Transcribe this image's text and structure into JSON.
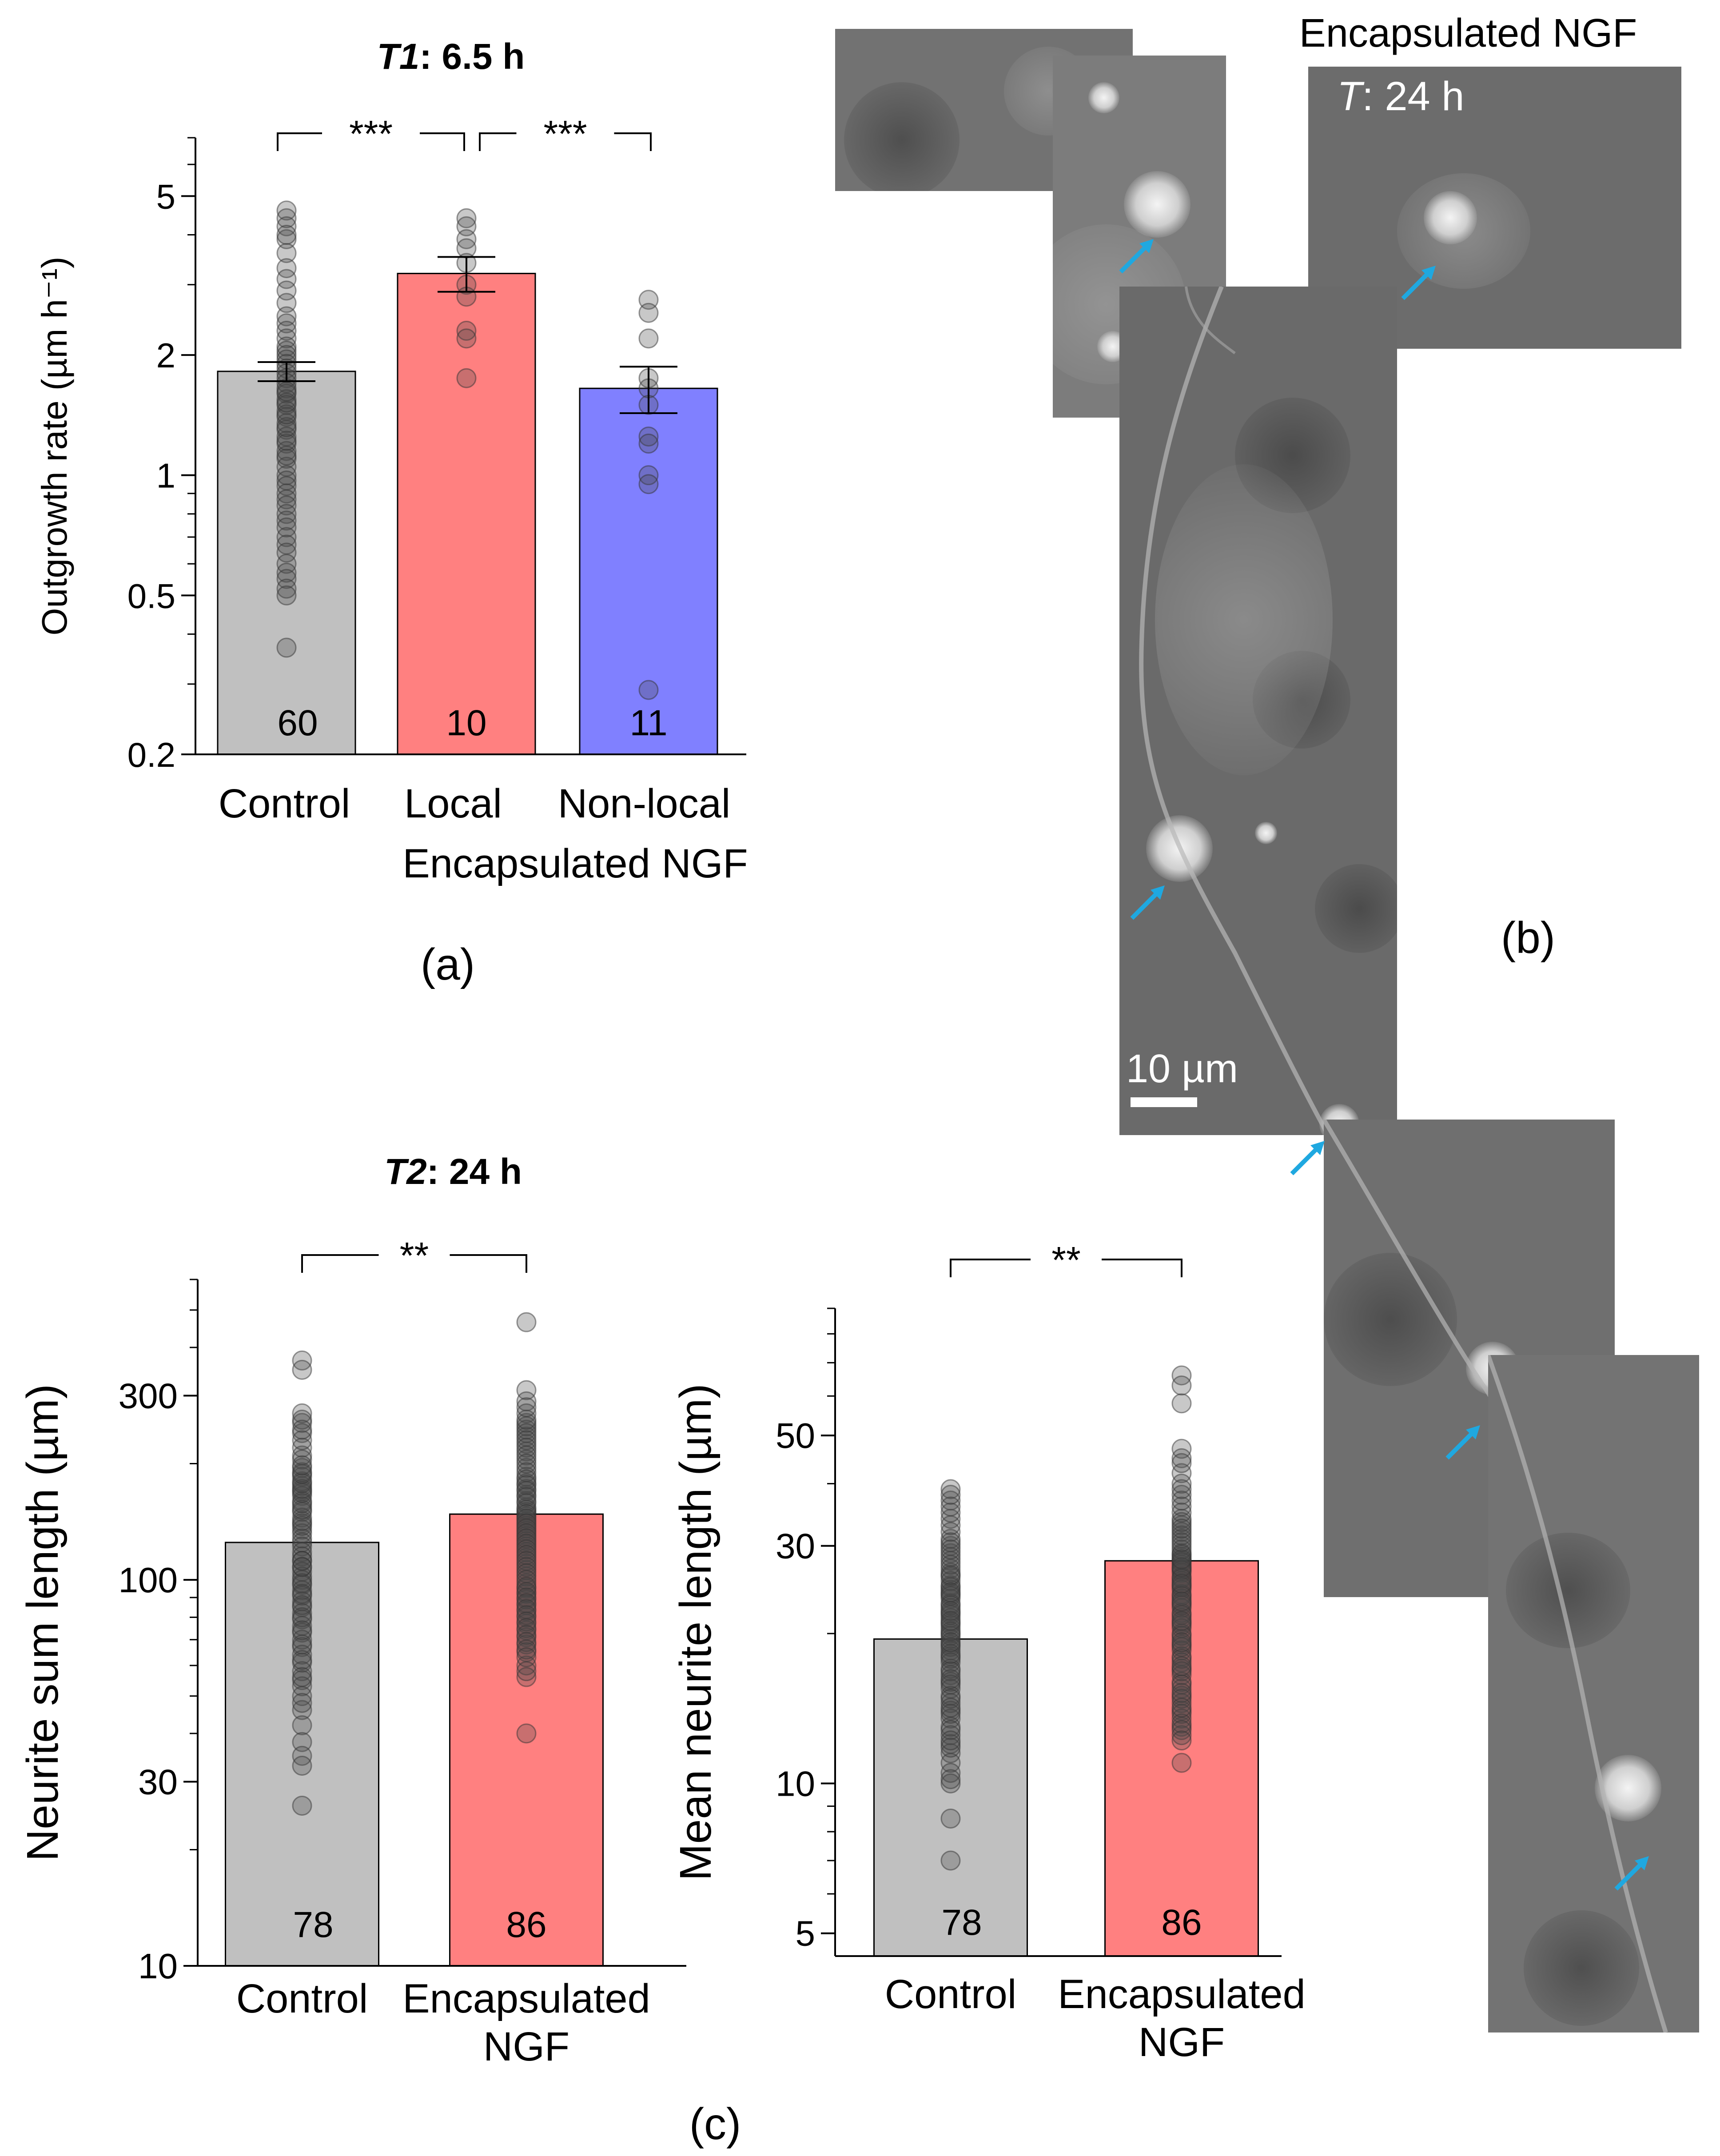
{
  "colors": {
    "control": "#c0c0c0",
    "local": "#ff8080",
    "nonlocal": "#8080ff",
    "arrow": "#1fa8e0",
    "point": "#4a4a4a"
  },
  "panel_labels": {
    "a": "(a)",
    "b": "(b)",
    "c": "(c)"
  },
  "panel_b": {
    "title": "Encapsulated NGF",
    "time_italic": "T",
    "time_rest": ": 24 h",
    "scale_bar": "10 µm",
    "arrow_icon": "arrow-icon"
  },
  "chart_data": [
    {
      "id": "a",
      "type": "bar",
      "scale": "log",
      "title_italic": "T1",
      "title_rest": ": 6.5 h",
      "ylabel": "Outgrowth rate (µm h⁻¹)",
      "ylim": [
        0.2,
        7
      ],
      "yticks": [
        0.2,
        0.5,
        1,
        2,
        5
      ],
      "ytick_labels": [
        "0.2",
        "0.5",
        "1",
        "2",
        "5"
      ],
      "categories": [
        "Control",
        "Local",
        "Non-local"
      ],
      "group_label": "Encapsulated NGF",
      "values": [
        1.82,
        3.2,
        1.65
      ],
      "errors": [
        0.1,
        0.32,
        0.22
      ],
      "n": [
        "60",
        "10",
        "11"
      ],
      "significance": [
        {
          "from": 0,
          "to": 1,
          "label": "***"
        },
        {
          "from": 1,
          "to": 2,
          "label": "***"
        }
      ],
      "points": [
        [
          4.6,
          4.4,
          4.2,
          3.9,
          3.6,
          3.3,
          3.1,
          2.9,
          2.7,
          2.5,
          2.4,
          2.3,
          2.2,
          2.1,
          2.05,
          2.0,
          1.95,
          1.9,
          1.85,
          1.8,
          1.75,
          1.7,
          1.65,
          1.6,
          1.55,
          1.5,
          1.45,
          1.4,
          1.35,
          1.3,
          1.25,
          1.2,
          1.15,
          1.1,
          1.05,
          1.0,
          0.97,
          0.94,
          0.9,
          0.87,
          0.84,
          0.8,
          0.77,
          0.74,
          0.7,
          0.67,
          0.64,
          0.6,
          0.57,
          0.55,
          0.52,
          0.5,
          1.12,
          1.22,
          1.32,
          1.42,
          1.52,
          1.62,
          0.37,
          4.0
        ],
        [
          4.4,
          4.2,
          3.9,
          3.7,
          3.4,
          3.0,
          2.8,
          2.3,
          2.2,
          1.75
        ],
        [
          2.75,
          2.55,
          2.2,
          1.75,
          1.65,
          1.5,
          1.25,
          1.2,
          1.0,
          0.95,
          0.29
        ]
      ]
    },
    {
      "id": "c1",
      "type": "bar",
      "scale": "log",
      "title_italic": "T2",
      "title_rest": ": 24 h",
      "ylabel": "Neurite sum length (µm)",
      "ylim": [
        10,
        600
      ],
      "yticks": [
        10,
        30,
        100,
        300
      ],
      "ytick_labels": [
        "10",
        "30",
        "100",
        "300"
      ],
      "categories": [
        "Control",
        "Encapsulated NGF"
      ],
      "values": [
        125,
        148
      ],
      "n": [
        "78",
        "86"
      ],
      "significance": [
        {
          "from": 0,
          "to": 1,
          "label": "**"
        }
      ],
      "points": [
        [
          370,
          350,
          270,
          255,
          240,
          220,
          205,
          195,
          185,
          175,
          170,
          165,
          160,
          155,
          150,
          145,
          140,
          135,
          132,
          128,
          125,
          122,
          118,
          115,
          112,
          108,
          105,
          102,
          100,
          97,
          94,
          91,
          88,
          85,
          82,
          79,
          76,
          73,
          70,
          67,
          64,
          61,
          58,
          55,
          53,
          50,
          46,
          42,
          38,
          35,
          33,
          26,
          180,
          190,
          210,
          230,
          260,
          245,
          138,
          142,
          152,
          158,
          168,
          172,
          178,
          188,
          198,
          112,
          108,
          98,
          92,
          86,
          80,
          74,
          68,
          62,
          56,
          48
        ],
        [
          465,
          310,
          290,
          270,
          255,
          245,
          235,
          225,
          215,
          205,
          195,
          185,
          178,
          172,
          166,
          160,
          154,
          150,
          146,
          142,
          138,
          134,
          130,
          126,
          122,
          118,
          114,
          110,
          106,
          102,
          98,
          95,
          92,
          89,
          86,
          83,
          80,
          77,
          74,
          71,
          68,
          65,
          60,
          56,
          40,
          250,
          240,
          230,
          220,
          210,
          200,
          190,
          182,
          176,
          170,
          164,
          158,
          152,
          148,
          144,
          140,
          136,
          132,
          128,
          124,
          120,
          116,
          112,
          108,
          104,
          100,
          96,
          93,
          90,
          87,
          84,
          81,
          78,
          75,
          72,
          69,
          66,
          63,
          58,
          260,
          280
        ]
      ]
    },
    {
      "id": "c2",
      "type": "bar",
      "scale": "log",
      "ylabel": "Mean neurite length (µm)",
      "ylim": [
        4.5,
        90
      ],
      "yticks": [
        5,
        10,
        30,
        50
      ],
      "ytick_labels": [
        "5",
        "10",
        "30",
        "50"
      ],
      "categories": [
        "Control",
        "Encapsulated NGF"
      ],
      "values": [
        19.5,
        28
      ],
      "n": [
        "78",
        "86"
      ],
      "significance": [
        {
          "from": 0,
          "to": 1,
          "label": "**"
        }
      ],
      "points": [
        [
          39,
          37,
          34,
          32,
          30,
          29,
          28,
          27,
          26,
          25,
          24.5,
          24,
          23.5,
          23,
          22.5,
          22,
          21.5,
          21,
          20.5,
          20,
          19.5,
          19,
          18.5,
          18,
          17.5,
          17,
          16.5,
          16,
          15.5,
          15,
          14.5,
          14,
          13.5,
          13,
          12.5,
          12,
          11.5,
          11,
          10.5,
          10,
          8.5,
          7.0,
          26.5,
          25.5,
          24.8,
          23.8,
          22.8,
          21.8,
          20.8,
          19.8,
          18.8,
          17.8,
          16.8,
          15.8,
          14.8,
          13.8,
          12.8,
          11.8,
          31,
          33,
          28.5,
          27.5,
          26.2,
          24.2,
          22.2,
          20.2,
          18.2,
          16.2,
          14.2,
          12.2,
          10.2,
          35,
          36,
          38,
          30.5,
          29.5,
          21.2,
          19.2
        ],
        [
          66,
          63,
          58,
          47,
          45,
          42,
          40,
          38,
          36,
          34,
          33,
          32,
          31,
          30,
          29,
          28.5,
          28,
          27.5,
          27,
          26.5,
          26,
          25.5,
          25,
          24.5,
          24,
          23.5,
          23,
          22.5,
          22,
          21.5,
          21,
          20.5,
          20,
          19.5,
          19,
          18.5,
          18,
          17.5,
          17,
          16.5,
          16,
          15.5,
          15,
          14.5,
          14,
          13.5,
          13,
          12.5,
          11,
          29.5,
          28.8,
          27.8,
          26.8,
          25.8,
          24.8,
          23.8,
          22.8,
          21.8,
          20.8,
          19.8,
          18.8,
          17.8,
          16.8,
          15.8,
          14.8,
          13.8,
          13.2,
          12.8,
          35,
          37,
          39,
          44,
          31.5,
          30.5,
          27.2,
          25.2,
          23.2,
          21.2,
          19.2,
          17.2,
          15.2,
          14.2,
          12.2,
          33.5,
          32.5,
          28.2
        ]
      ]
    }
  ]
}
